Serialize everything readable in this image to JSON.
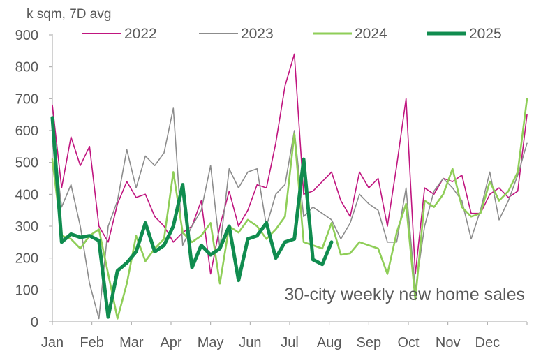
{
  "chart_data": {
    "type": "line",
    "unit_label": "k sqm, 7D avg",
    "annotation": "30-city weekly new home sales",
    "x_unit": "week of year",
    "xlim": [
      1,
      52
    ],
    "ylim": [
      0,
      900
    ],
    "yticks": [
      0,
      100,
      200,
      300,
      400,
      500,
      600,
      700,
      800,
      900
    ],
    "month_labels": [
      "Jan",
      "Feb",
      "Mar",
      "Apr",
      "May",
      "Jun",
      "Jul",
      "Aug",
      "Sep",
      "Oct",
      "Nov",
      "Dec"
    ],
    "grid": false,
    "legend_position": "top",
    "series": [
      {
        "name": "2022",
        "color": "#c0157f",
        "x": [
          1,
          2,
          3,
          4,
          5,
          6,
          7,
          8,
          9,
          10,
          11,
          12,
          13,
          14,
          15,
          16,
          17,
          18,
          19,
          20,
          21,
          22,
          23,
          24,
          25,
          26,
          27,
          28,
          29,
          30,
          31,
          32,
          33,
          34,
          35,
          36,
          37,
          38,
          39,
          40,
          41,
          42,
          43,
          44,
          45,
          46,
          47,
          48,
          49,
          50,
          51,
          52
        ],
        "values": [
          680,
          420,
          580,
          490,
          550,
          300,
          250,
          370,
          440,
          390,
          400,
          330,
          300,
          250,
          280,
          300,
          380,
          150,
          300,
          410,
          300,
          350,
          430,
          420,
          560,
          740,
          840,
          400,
          410,
          440,
          470,
          380,
          330,
          470,
          420,
          450,
          300,
          490,
          700,
          150,
          420,
          400,
          450,
          440,
          460,
          340,
          340,
          400,
          420,
          390,
          410,
          650
        ]
      },
      {
        "name": "2023",
        "color": "#8c8c8c",
        "x": [
          1,
          2,
          3,
          4,
          5,
          6,
          7,
          8,
          9,
          10,
          11,
          12,
          13,
          14,
          15,
          16,
          17,
          18,
          19,
          20,
          21,
          22,
          23,
          24,
          25,
          26,
          27,
          28,
          29,
          30,
          31,
          32,
          33,
          34,
          35,
          36,
          37,
          38,
          39,
          40,
          41,
          42,
          43,
          44,
          45,
          46,
          47,
          48,
          49,
          50,
          51,
          52
        ],
        "values": [
          600,
          360,
          430,
          300,
          120,
          10,
          300,
          380,
          540,
          420,
          520,
          490,
          530,
          670,
          240,
          300,
          350,
          490,
          230,
          480,
          420,
          470,
          480,
          300,
          400,
          430,
          600,
          330,
          360,
          340,
          320,
          260,
          310,
          400,
          370,
          350,
          250,
          250,
          420,
          100,
          300,
          410,
          450,
          420,
          380,
          260,
          350,
          470,
          320,
          380,
          460,
          560
        ]
      },
      {
        "name": "2024",
        "color": "#8fce58",
        "x": [
          1,
          2,
          3,
          4,
          5,
          6,
          7,
          8,
          9,
          10,
          11,
          12,
          13,
          14,
          15,
          16,
          17,
          18,
          19,
          20,
          21,
          22,
          23,
          24,
          25,
          26,
          27,
          28,
          29,
          30,
          31,
          32,
          33,
          34,
          35,
          36,
          37,
          38,
          39,
          40,
          41,
          42,
          43,
          44,
          45,
          46,
          47,
          48,
          49,
          50,
          51,
          52
        ],
        "values": [
          510,
          270,
          260,
          230,
          270,
          290,
          150,
          10,
          120,
          270,
          190,
          230,
          260,
          470,
          280,
          250,
          270,
          310,
          120,
          300,
          280,
          320,
          300,
          260,
          290,
          330,
          590,
          250,
          240,
          230,
          310,
          210,
          215,
          250,
          240,
          230,
          150,
          280,
          370,
          70,
          380,
          360,
          400,
          480,
          360,
          330,
          340,
          440,
          380,
          410,
          470,
          700
        ]
      },
      {
        "name": "2025",
        "color": "#108c4f",
        "x": [
          1,
          2,
          3,
          4,
          5,
          6,
          7,
          8,
          9,
          10,
          11,
          12,
          13,
          14,
          15,
          16,
          17,
          18,
          19,
          20,
          21,
          22,
          23,
          24,
          25,
          26,
          27,
          28,
          29,
          30,
          31
        ],
        "values": [
          640,
          250,
          275,
          265,
          270,
          255,
          15,
          160,
          185,
          220,
          310,
          220,
          240,
          300,
          430,
          170,
          240,
          210,
          230,
          300,
          130,
          260,
          270,
          310,
          200,
          250,
          260,
          510,
          195,
          180,
          250
        ]
      }
    ]
  }
}
